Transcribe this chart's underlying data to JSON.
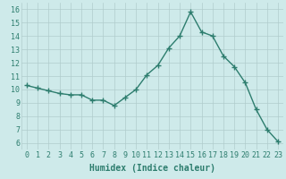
{
  "x": [
    0,
    1,
    2,
    3,
    4,
    5,
    6,
    7,
    8,
    9,
    10,
    11,
    12,
    13,
    14,
    15,
    16,
    17,
    18,
    19,
    20,
    21,
    22,
    23
  ],
  "y": [
    10.3,
    10.1,
    9.9,
    9.7,
    9.6,
    9.6,
    9.2,
    9.2,
    8.8,
    9.4,
    10.0,
    11.1,
    11.8,
    13.1,
    14.0,
    15.8,
    14.3,
    14.0,
    12.5,
    11.7,
    10.5,
    8.5,
    7.0,
    6.1
  ],
  "line_color": "#2d7d6e",
  "marker": "+",
  "marker_size": 4,
  "marker_lw": 1.0,
  "xlabel": "Humidex (Indice chaleur)",
  "ylabel_ticks": [
    6,
    7,
    8,
    9,
    10,
    11,
    12,
    13,
    14,
    15,
    16
  ],
  "ylim": [
    5.5,
    16.5
  ],
  "xlim": [
    -0.5,
    23.5
  ],
  "background_color": "#ceeaea",
  "grid_color": "#b0cccc",
  "xlabel_fontsize": 7,
  "tick_fontsize": 6,
  "linewidth": 1.0
}
